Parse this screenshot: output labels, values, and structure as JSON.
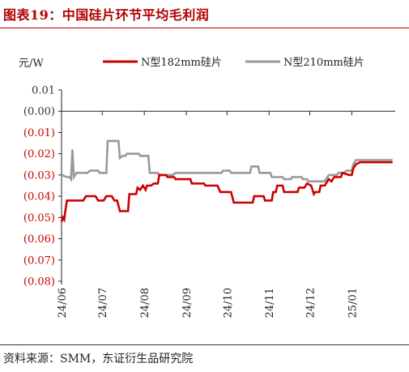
{
  "figure": {
    "title": "图表19：中国硅片环节平均毛利润",
    "source": "资料来源：SMM，东证衍生品研究院"
  },
  "colors": {
    "title": "#b00000",
    "series1": "#cc0000",
    "series2": "#999999",
    "negative_tick": "#cc0000",
    "positive_tick": "#333333"
  },
  "chart_data": {
    "type": "line",
    "title": "",
    "xlabel": "",
    "ylabel": "元/W",
    "ylim": [
      -0.08,
      0.01
    ],
    "y_ticks": [
      {
        "value": 0.01,
        "label": "0.01"
      },
      {
        "value": 0.0,
        "label": "(0.00)"
      },
      {
        "value": -0.01,
        "label": "(0.01)"
      },
      {
        "value": -0.02,
        "label": "(0.02)"
      },
      {
        "value": -0.03,
        "label": "(0.03)"
      },
      {
        "value": -0.04,
        "label": "(0.04)"
      },
      {
        "value": -0.05,
        "label": "(0.05)"
      },
      {
        "value": -0.06,
        "label": "(0.06)"
      },
      {
        "value": -0.07,
        "label": "(0.07)"
      },
      {
        "value": -0.08,
        "label": "(0.08)"
      }
    ],
    "x_ticks": [
      "24/06",
      "24/07",
      "24/08",
      "24/09",
      "24/10",
      "24/11",
      "24/12",
      "25/01"
    ],
    "legend_position": "top",
    "series": [
      {
        "name": "N型182mm硅片",
        "points": [
          [
            "2024-06-01",
            -0.052
          ],
          [
            "2024-06-02",
            -0.05
          ],
          [
            "2024-06-03",
            -0.051
          ],
          [
            "2024-06-04",
            -0.046
          ],
          [
            "2024-06-05",
            -0.042
          ],
          [
            "2024-06-17",
            -0.042
          ],
          [
            "2024-06-19",
            -0.04
          ],
          [
            "2024-06-26",
            -0.04
          ],
          [
            "2024-06-28",
            -0.042
          ],
          [
            "2024-07-02",
            -0.042
          ],
          [
            "2024-07-04",
            -0.04
          ],
          [
            "2024-07-08",
            -0.04
          ],
          [
            "2024-07-10",
            -0.042
          ],
          [
            "2024-07-12",
            -0.042
          ],
          [
            "2024-07-14",
            -0.047
          ],
          [
            "2024-07-20",
            -0.047
          ],
          [
            "2024-07-21",
            -0.039
          ],
          [
            "2024-07-26",
            -0.039
          ],
          [
            "2024-07-27",
            -0.036
          ],
          [
            "2024-07-29",
            -0.037
          ],
          [
            "2024-07-31",
            -0.035
          ],
          [
            "2024-08-02",
            -0.037
          ],
          [
            "2024-08-03",
            -0.035
          ],
          [
            "2024-08-06",
            -0.035
          ],
          [
            "2024-08-08",
            -0.034
          ],
          [
            "2024-08-11",
            -0.034
          ],
          [
            "2024-08-12",
            -0.03
          ],
          [
            "2024-08-17",
            -0.03
          ],
          [
            "2024-08-18",
            -0.031
          ],
          [
            "2024-08-23",
            -0.031
          ],
          [
            "2024-08-24",
            -0.032
          ],
          [
            "2024-09-04",
            -0.032
          ],
          [
            "2024-09-05",
            -0.034
          ],
          [
            "2024-09-14",
            -0.034
          ],
          [
            "2024-09-15",
            -0.035
          ],
          [
            "2024-09-24",
            -0.035
          ],
          [
            "2024-09-26",
            -0.038
          ],
          [
            "2024-10-04",
            -0.038
          ],
          [
            "2024-10-06",
            -0.043
          ],
          [
            "2024-10-20",
            -0.043
          ],
          [
            "2024-10-21",
            -0.04
          ],
          [
            "2024-10-28",
            -0.04
          ],
          [
            "2024-10-29",
            -0.042
          ],
          [
            "2024-11-03",
            -0.042
          ],
          [
            "2024-11-04",
            -0.038
          ],
          [
            "2024-11-06",
            -0.038
          ],
          [
            "2024-11-07",
            -0.035
          ],
          [
            "2024-11-11",
            -0.035
          ],
          [
            "2024-11-12",
            -0.038
          ],
          [
            "2024-11-22",
            -0.038
          ],
          [
            "2024-11-23",
            -0.036
          ],
          [
            "2024-11-27",
            -0.036
          ],
          [
            "2024-11-29",
            -0.034
          ],
          [
            "2024-12-02",
            -0.035
          ],
          [
            "2024-12-04",
            -0.039
          ],
          [
            "2024-12-05",
            -0.038
          ],
          [
            "2024-12-08",
            -0.038
          ],
          [
            "2024-12-09",
            -0.035
          ],
          [
            "2024-12-12",
            -0.035
          ],
          [
            "2024-12-13",
            -0.034
          ],
          [
            "2024-12-15",
            -0.032
          ],
          [
            "2024-12-17",
            -0.033
          ],
          [
            "2024-12-19",
            -0.031
          ],
          [
            "2024-12-24",
            -0.031
          ],
          [
            "2024-12-25",
            -0.029
          ],
          [
            "2024-12-30",
            -0.03
          ],
          [
            "2025-01-01",
            -0.03
          ],
          [
            "2025-01-02",
            -0.027
          ],
          [
            "2025-01-04",
            -0.025
          ],
          [
            "2025-01-07",
            -0.024
          ],
          [
            "2025-01-31",
            -0.024
          ]
        ]
      },
      {
        "name": "N型210mm硅片",
        "points": [
          [
            "2024-06-01",
            -0.03
          ],
          [
            "2024-06-05",
            -0.031
          ],
          [
            "2024-06-07",
            -0.031
          ],
          [
            "2024-06-08",
            -0.032
          ],
          [
            "2024-06-09",
            -0.018
          ],
          [
            "2024-06-10",
            -0.031
          ],
          [
            "2024-06-12",
            -0.029
          ],
          [
            "2024-06-20",
            -0.029
          ],
          [
            "2024-06-22",
            -0.028
          ],
          [
            "2024-06-28",
            -0.028
          ],
          [
            "2024-06-29",
            -0.029
          ],
          [
            "2024-07-04",
            -0.029
          ],
          [
            "2024-07-05",
            -0.014
          ],
          [
            "2024-07-13",
            -0.014
          ],
          [
            "2024-07-14",
            -0.022
          ],
          [
            "2024-07-16",
            -0.021
          ],
          [
            "2024-07-18",
            -0.021
          ],
          [
            "2024-07-19",
            -0.02
          ],
          [
            "2024-07-28",
            -0.02
          ],
          [
            "2024-07-29",
            -0.021
          ],
          [
            "2024-08-04",
            -0.021
          ],
          [
            "2024-08-05",
            -0.029
          ],
          [
            "2024-08-11",
            -0.029
          ],
          [
            "2024-08-12",
            -0.03
          ],
          [
            "2024-08-22",
            -0.03
          ],
          [
            "2024-08-24",
            -0.029
          ],
          [
            "2024-09-27",
            -0.029
          ],
          [
            "2024-09-28",
            -0.028
          ],
          [
            "2024-10-03",
            -0.028
          ],
          [
            "2024-10-04",
            -0.029
          ],
          [
            "2024-10-18",
            -0.029
          ],
          [
            "2024-10-19",
            -0.026
          ],
          [
            "2024-10-24",
            -0.026
          ],
          [
            "2024-10-25",
            -0.029
          ],
          [
            "2024-11-02",
            -0.029
          ],
          [
            "2024-11-03",
            -0.031
          ],
          [
            "2024-11-11",
            -0.031
          ],
          [
            "2024-11-12",
            -0.032
          ],
          [
            "2024-11-17",
            -0.032
          ],
          [
            "2024-11-18",
            -0.031
          ],
          [
            "2024-11-25",
            -0.031
          ],
          [
            "2024-11-26",
            -0.032
          ],
          [
            "2024-11-29",
            -0.032
          ],
          [
            "2024-11-30",
            -0.033
          ],
          [
            "2024-12-12",
            -0.033
          ],
          [
            "2024-12-13",
            -0.032
          ],
          [
            "2024-12-15",
            -0.03
          ],
          [
            "2024-12-21",
            -0.03
          ],
          [
            "2024-12-22",
            -0.029
          ],
          [
            "2024-12-26",
            -0.029
          ],
          [
            "2024-12-28",
            -0.028
          ],
          [
            "2025-01-01",
            -0.028
          ],
          [
            "2025-01-02",
            -0.025
          ],
          [
            "2025-01-04",
            -0.023
          ],
          [
            "2025-01-31",
            -0.023
          ]
        ]
      }
    ]
  }
}
